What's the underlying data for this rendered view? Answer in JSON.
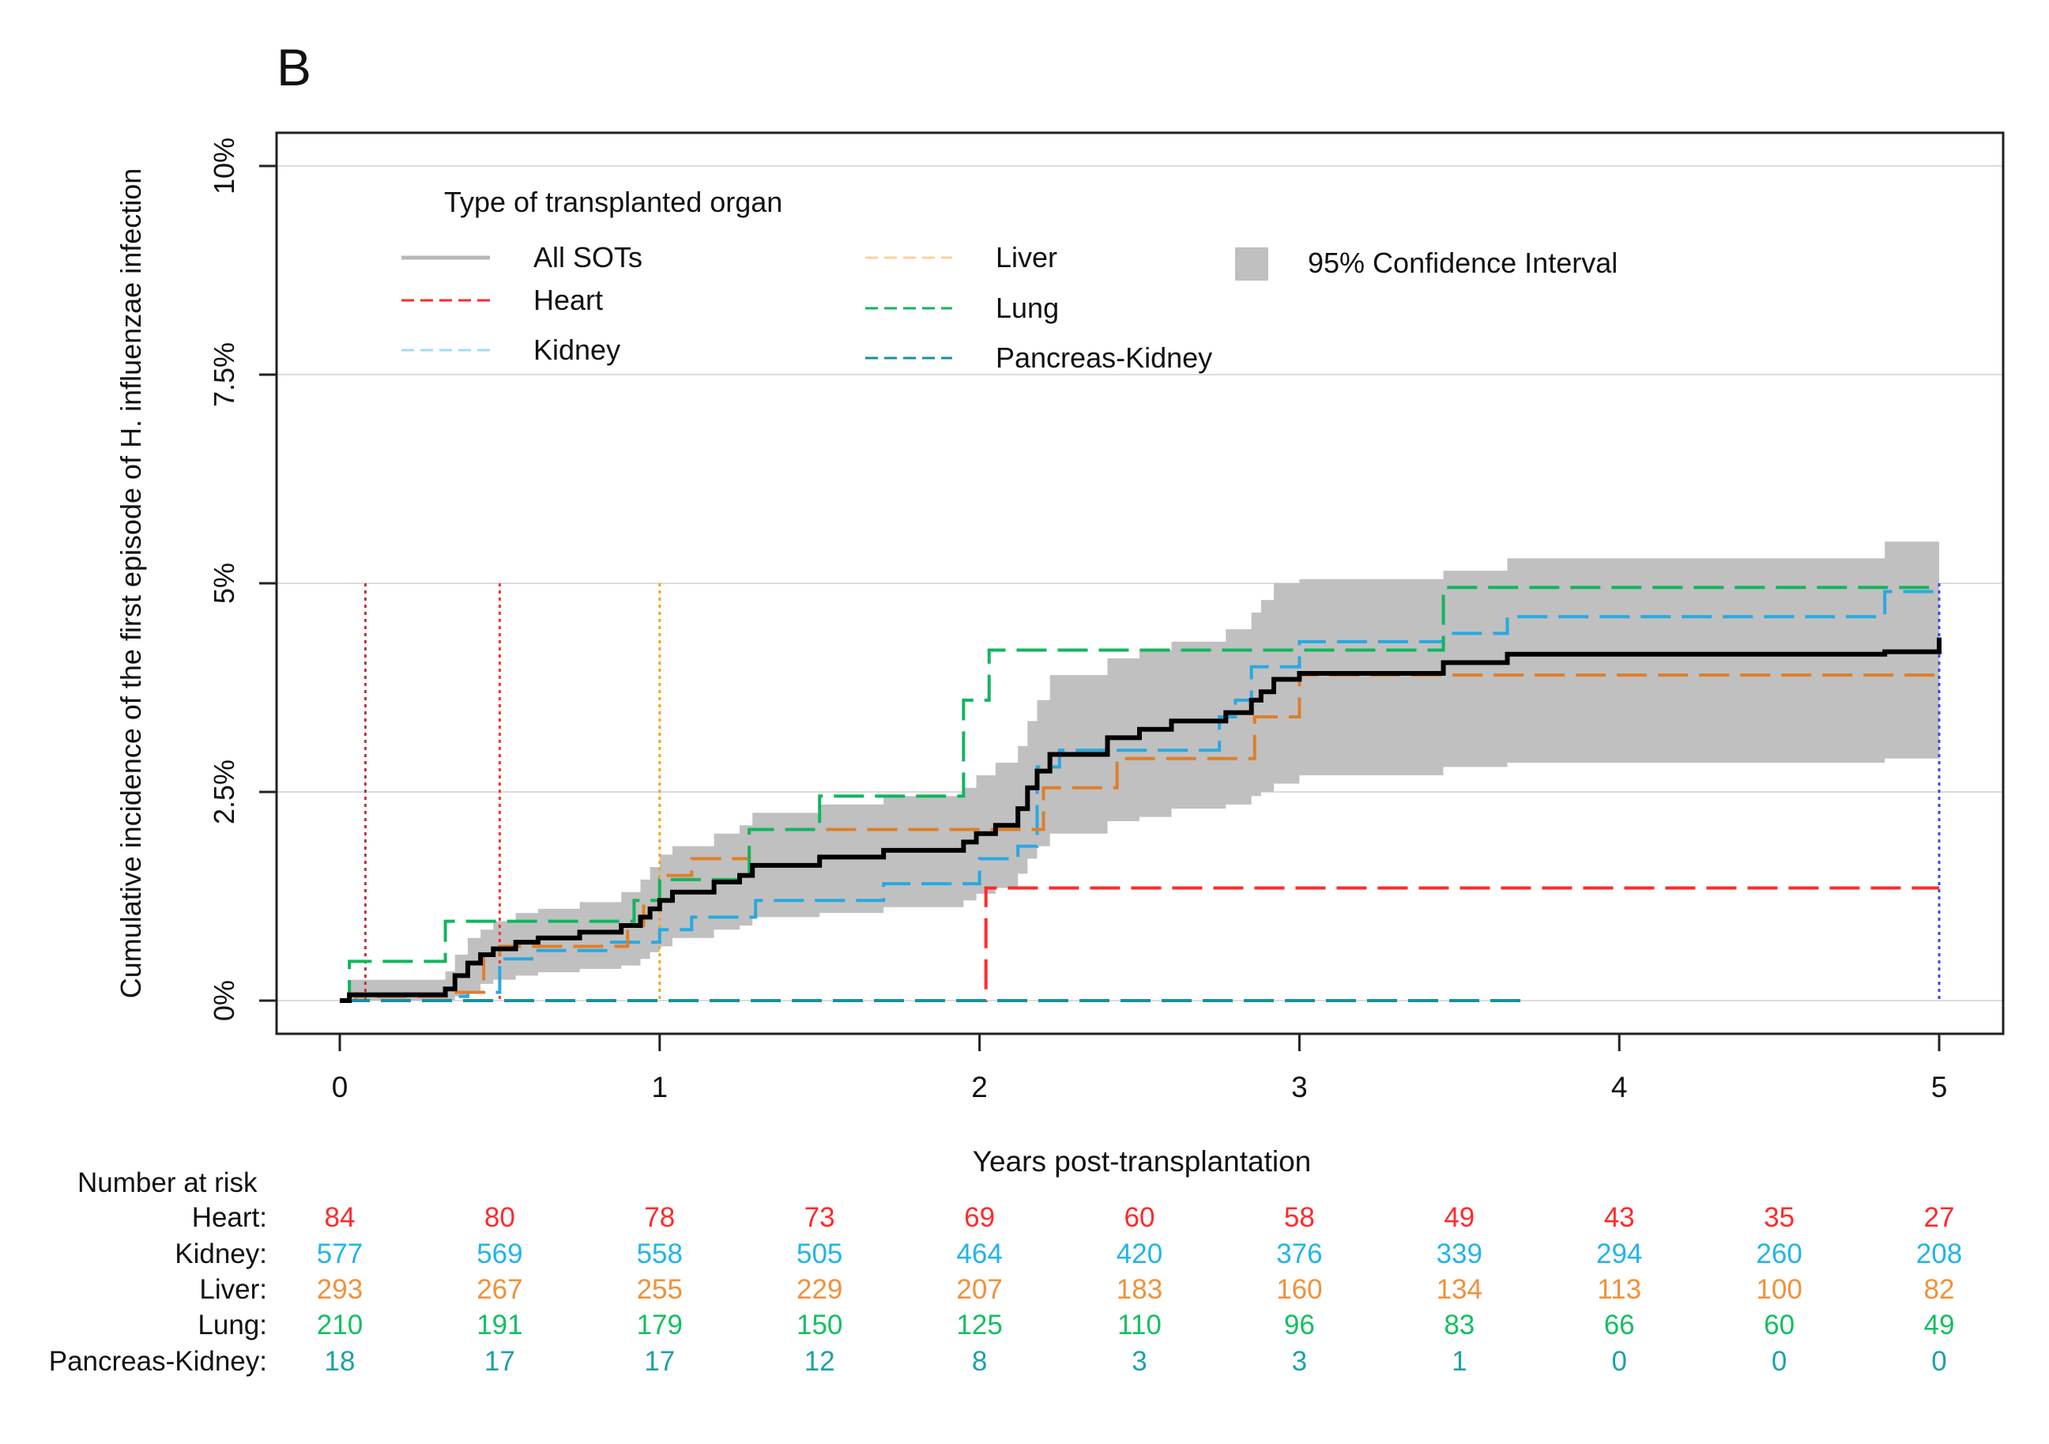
{
  "panel_label": "B",
  "chart_data": {
    "type": "line",
    "xlabel": "Years post-transplantation",
    "ylabel": "Cumulative incidence of the first episode of H. influenzae infection",
    "xlim": [
      0,
      5
    ],
    "ylim": [
      0,
      10
    ],
    "xticks": [
      0,
      1,
      2,
      3,
      4,
      5
    ],
    "xtick_labels": [
      "0",
      "1",
      "2",
      "3",
      "4",
      "5"
    ],
    "yticks": [
      0,
      2.5,
      5,
      7.5,
      10
    ],
    "ytick_labels": [
      "0%",
      "2.5%",
      "5%",
      "7.5%",
      "10%"
    ],
    "legend": {
      "title": "Type of transplanted organ",
      "placement": "top-left",
      "ci_label": "95% Confidence Interval",
      "ci_color": "#c0c0c0"
    },
    "series": [
      {
        "name": "All SOTs",
        "color": "#000000",
        "dash": "solid",
        "legend_color": "#b8b8b8",
        "x": [
          0,
          0.03,
          0.33,
          0.36,
          0.4,
          0.44,
          0.48,
          0.55,
          0.62,
          0.75,
          0.88,
          0.94,
          0.97,
          1.0,
          1.04,
          1.17,
          1.25,
          1.29,
          1.5,
          1.7,
          1.95,
          1.99,
          2.05,
          2.12,
          2.15,
          2.18,
          2.22,
          2.4,
          2.5,
          2.6,
          2.7,
          2.77,
          2.85,
          2.88,
          2.92,
          3.0,
          3.45,
          3.65,
          4.83,
          5.0
        ],
        "y": [
          0,
          0.07,
          0.14,
          0.3,
          0.45,
          0.55,
          0.62,
          0.7,
          0.75,
          0.82,
          0.9,
          1.0,
          1.1,
          1.2,
          1.3,
          1.42,
          1.5,
          1.62,
          1.72,
          1.8,
          1.9,
          2.0,
          2.1,
          2.3,
          2.55,
          2.75,
          2.95,
          3.15,
          3.25,
          3.35,
          3.35,
          3.45,
          3.6,
          3.7,
          3.85,
          3.92,
          4.05,
          4.15,
          4.18,
          4.35
        ]
      },
      {
        "name": "Heart",
        "color": "#ff2a2a",
        "dash": "long",
        "x": [
          0,
          2.02,
          5.0
        ],
        "y": [
          0,
          1.35,
          1.35
        ]
      },
      {
        "name": "Kidney",
        "color": "#29a8e0",
        "dash": "long",
        "legend_color": "#9fdcf5",
        "x": [
          0,
          0.1,
          0.4,
          0.5,
          0.6,
          0.85,
          1.0,
          1.1,
          1.3,
          1.7,
          2.0,
          2.12,
          2.18,
          2.25,
          2.75,
          2.8,
          2.85,
          3.0,
          3.45,
          3.65,
          4.83,
          5.0
        ],
        "y": [
          0,
          0.05,
          0.1,
          0.5,
          0.6,
          0.7,
          0.85,
          1.0,
          1.2,
          1.4,
          1.7,
          1.85,
          2.8,
          3.0,
          3.4,
          3.6,
          4.0,
          4.3,
          4.4,
          4.6,
          4.9,
          4.9
        ]
      },
      {
        "name": "Liver",
        "color": "#e07e2a",
        "dash": "long",
        "legend_color": "#f8d2a2",
        "x": [
          0,
          0.05,
          0.35,
          0.45,
          0.5,
          0.9,
          0.95,
          1.0,
          1.1,
          1.28,
          2.2,
          2.43,
          2.86,
          3.0,
          5.0
        ],
        "y": [
          0,
          0.05,
          0.1,
          0.55,
          0.65,
          0.9,
          1.2,
          1.5,
          1.7,
          2.05,
          2.55,
          2.9,
          3.4,
          3.9,
          3.9
        ]
      },
      {
        "name": "Lung",
        "color": "#12b55e",
        "dash": "long",
        "x": [
          0,
          0.03,
          0.33,
          0.92,
          1.0,
          1.28,
          1.5,
          1.95,
          2.03,
          3.45,
          5.0
        ],
        "y": [
          0,
          0.47,
          0.95,
          1.2,
          1.45,
          2.05,
          2.45,
          3.6,
          4.2,
          4.95,
          4.95
        ]
      },
      {
        "name": "Pancreas-Kidney",
        "color": "#16919e",
        "dash": "long",
        "x": [
          0,
          3.72
        ],
        "y": [
          0,
          0
        ]
      }
    ],
    "ci_band": {
      "x": [
        0,
        0.03,
        0.33,
        0.36,
        0.4,
        0.44,
        0.48,
        0.55,
        0.62,
        0.75,
        0.88,
        0.94,
        0.97,
        1.0,
        1.04,
        1.17,
        1.25,
        1.29,
        1.5,
        1.7,
        1.95,
        1.99,
        2.05,
        2.12,
        2.15,
        2.18,
        2.22,
        2.4,
        2.5,
        2.6,
        2.7,
        2.77,
        2.85,
        2.88,
        2.92,
        3.0,
        3.45,
        3.65,
        4.83,
        5.0
      ],
      "lower": [
        0,
        0,
        0,
        0.05,
        0.12,
        0.2,
        0.25,
        0.3,
        0.34,
        0.38,
        0.42,
        0.5,
        0.58,
        0.65,
        0.75,
        0.85,
        0.9,
        1.0,
        1.05,
        1.12,
        1.2,
        1.28,
        1.35,
        1.52,
        1.7,
        1.85,
        2.0,
        2.15,
        2.2,
        2.3,
        2.3,
        2.35,
        2.45,
        2.5,
        2.6,
        2.7,
        2.8,
        2.85,
        2.9,
        3.15
      ],
      "upper": [
        0,
        0.25,
        0.35,
        0.55,
        0.75,
        0.85,
        0.95,
        1.05,
        1.1,
        1.18,
        1.3,
        1.45,
        1.6,
        1.75,
        1.85,
        2.0,
        2.1,
        2.25,
        2.35,
        2.45,
        2.55,
        2.7,
        2.85,
        3.05,
        3.35,
        3.6,
        3.9,
        4.1,
        4.2,
        4.3,
        4.3,
        4.45,
        4.65,
        4.8,
        5.0,
        5.05,
        5.15,
        5.3,
        5.5,
        5.8
      ]
    },
    "vertical_markers": [
      {
        "x": 0.08,
        "color": "#c0303a"
      },
      {
        "x": 0.5,
        "color": "#ff3030"
      },
      {
        "x": 1.0,
        "color": "#f5a21a"
      },
      {
        "x": 5.0,
        "color": "#3a48e8"
      }
    ]
  },
  "risk_table": {
    "title": "Number at risk",
    "times": [
      0,
      0.5,
      1,
      1.5,
      2,
      2.5,
      3,
      3.5,
      4,
      4.5,
      5
    ],
    "rows": [
      {
        "label": "Heart:",
        "color": "#ff2a2a",
        "values": [
          "84",
          "80",
          "78",
          "73",
          "69",
          "60",
          "58",
          "49",
          "43",
          "35",
          "27"
        ]
      },
      {
        "label": "Kidney:",
        "color": "#22b4ec",
        "values": [
          "577",
          "569",
          "558",
          "505",
          "464",
          "420",
          "376",
          "339",
          "294",
          "260",
          "208"
        ]
      },
      {
        "label": "Liver:",
        "color": "#f0913c",
        "values": [
          "293",
          "267",
          "255",
          "229",
          "207",
          "183",
          "160",
          "134",
          "113",
          "100",
          "82"
        ]
      },
      {
        "label": "Lung:",
        "color": "#12c060",
        "values": [
          "210",
          "191",
          "179",
          "150",
          "125",
          "110",
          "96",
          "83",
          "66",
          "60",
          "49"
        ]
      },
      {
        "label": "Pancreas-Kidney:",
        "color": "#1fa0aa",
        "values": [
          "18",
          "17",
          "17",
          "12",
          "8",
          "3",
          "3",
          "1",
          "0",
          "0",
          "0"
        ]
      }
    ]
  }
}
